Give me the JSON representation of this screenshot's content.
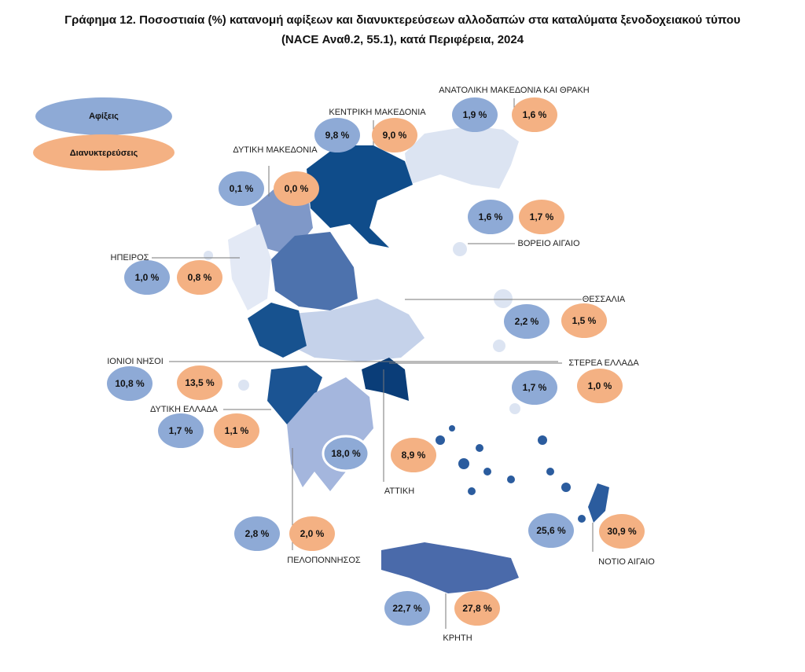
{
  "header": {
    "title_line1": "Γράφημα 12. Ποσοστιαία (%) κατανομή αφίξεων και διανυκτερεύσεων αλλοδαπών στα καταλύματα ξενοδοχειακού τύπου",
    "title_line2": "(NACE Αναθ.2, 55.1), κατά Περιφέρεια, 2024"
  },
  "legend": {
    "arrivals": "Αφίξεις",
    "overnights": "Διανυκτερεύσεις"
  },
  "regions": [
    {
      "name": "ΑΝΑΤΟΛΙΚΗ ΜΑΚΕΔΟΝΙΑ ΚΑΙ ΘΡΑΚΗ",
      "arrivals": "1,9 %",
      "overnights": "1,6 %"
    },
    {
      "name": "ΚΕΝΤΡΙΚΗ ΜΑΚΕΔΟΝΙΑ",
      "arrivals": "9,8 %",
      "overnights": "9,0 %"
    },
    {
      "name": "ΔΥΤΙΚΗ ΜΑΚΕΔΟΝΙΑ",
      "arrivals": "0,1 %",
      "overnights": "0,0 %"
    },
    {
      "name": "ΒΟΡΕΙΟ ΑΙΓΑΙΟ",
      "arrivals": "1,6 %",
      "overnights": "1,7 %"
    },
    {
      "name": "ΗΠΕΙΡΟΣ",
      "arrivals": "1,0 %",
      "overnights": "0,8 %"
    },
    {
      "name": "ΘΕΣΣΑΛΙΑ",
      "arrivals": "2,2 %",
      "overnights": "1,5 %"
    },
    {
      "name": "ΙΟΝΙΟΙ ΝΗΣΟΙ",
      "arrivals": "10,8 %",
      "overnights": "13,5 %"
    },
    {
      "name": "ΣΤΕΡΕΑ ΕΛΛΑΔΑ",
      "arrivals": "1,7 %",
      "overnights": "1,0 %"
    },
    {
      "name": "ΔΥΤΙΚΗ ΕΛΛΑΔΑ",
      "arrivals": "1,7 %",
      "overnights": "1,1 %"
    },
    {
      "name": "ΑΤΤΙΚΗ",
      "arrivals": "18,0 %",
      "overnights": "8,9 %"
    },
    {
      "name": "ΠΕΛΟΠΟΝΝΗΣΟΣ",
      "arrivals": "2,8 %",
      "overnights": "2,0 %"
    },
    {
      "name": "ΝΟΤΙΟ ΑΙΓΑΙΟ",
      "arrivals": "25,6 %",
      "overnights": "30,9 %"
    },
    {
      "name": "ΚΡΗΤΗ",
      "arrivals": "22,7 %",
      "overnights": "27,8 %"
    }
  ]
}
